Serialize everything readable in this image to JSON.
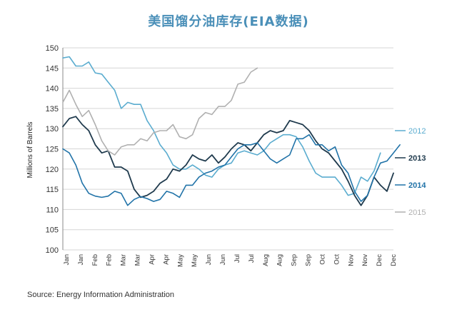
{
  "chart_data": {
    "type": "line",
    "title": "美国馏分油库存(EIA数据)",
    "ylabel": "Millions of Barrels",
    "source": "Source: Energy Information Administration",
    "ylim": [
      100,
      150
    ],
    "yticks": [
      100,
      105,
      110,
      115,
      120,
      125,
      130,
      135,
      140,
      145,
      150
    ],
    "xlabels": [
      "Jan",
      "Jan",
      "Feb",
      "Feb",
      "Mar",
      "Mar",
      "Apr",
      "Apr",
      "May",
      "May",
      "Jun",
      "Jun",
      "Jul",
      "Jul",
      "Aug",
      "Aug",
      "Sep",
      "Sep",
      "Oct",
      "Oct",
      "Nov",
      "Nov",
      "Dec",
      "Dec"
    ],
    "grid": true,
    "series": [
      {
        "name": "2012",
        "color": "#5aaccf",
        "values": [
          147.5,
          147.8,
          145.5,
          145.5,
          146.5,
          143.8,
          143.5,
          141.5,
          139.5,
          135,
          136.5,
          136,
          136,
          132,
          129.5,
          126,
          124,
          121,
          120,
          120,
          121,
          120,
          118.5,
          118,
          120,
          121,
          121.5,
          124,
          124.5,
          124,
          123.5,
          124.5,
          126.5,
          127.5,
          128.5,
          128.5,
          128,
          125.5,
          122,
          119,
          118,
          118,
          118,
          116,
          113.5,
          114,
          118,
          117,
          119.5,
          124
        ]
      },
      {
        "name": "2013",
        "color": "#1f3a4d",
        "values": [
          130.5,
          132.5,
          133,
          131,
          129.5,
          126,
          124,
          124.5,
          120.5,
          120.5,
          119.5,
          115,
          113,
          113.5,
          114.5,
          116.5,
          117.5,
          120,
          119.5,
          121,
          123.5,
          122.5,
          122,
          123.5,
          121.5,
          123,
          125,
          126.5,
          126,
          124.5,
          126.5,
          128.5,
          129.5,
          129,
          129.5,
          132,
          131.5,
          131,
          129.5,
          127,
          125,
          124,
          122,
          120,
          117,
          113.5,
          111,
          113.5,
          118,
          116,
          114.5,
          119
        ]
      },
      {
        "name": "2014",
        "color": "#2173a8",
        "values": [
          125,
          124,
          121,
          116.5,
          114,
          113.3,
          113,
          113.3,
          114.5,
          114,
          111,
          112.5,
          113.2,
          112.7,
          112,
          112.5,
          114.5,
          114,
          113,
          116,
          116,
          118,
          119,
          119.5,
          120.5,
          121,
          123,
          125,
          126,
          126,
          126.5,
          124.5,
          122.5,
          121.5,
          122.5,
          123.5,
          127.5,
          127.5,
          128.5,
          126,
          126,
          124.5,
          125.5,
          121,
          119,
          114.5,
          112,
          113.5,
          118,
          121.5,
          122,
          124,
          126
        ]
      },
      {
        "name": "2015",
        "color": "#b0b0b0",
        "values": [
          136.5,
          139.5,
          136,
          133,
          134.5,
          131,
          127,
          124.5,
          123.5,
          125.5,
          126,
          126,
          127.5,
          127,
          129,
          129.5,
          129.5,
          131,
          128,
          127.5,
          128.5,
          132.5,
          134,
          133.5,
          135.5,
          135.5,
          137,
          141,
          141.5,
          144,
          145
        ]
      }
    ],
    "end_labels": [
      "2012",
      "2013",
      "2014",
      "2015"
    ]
  }
}
